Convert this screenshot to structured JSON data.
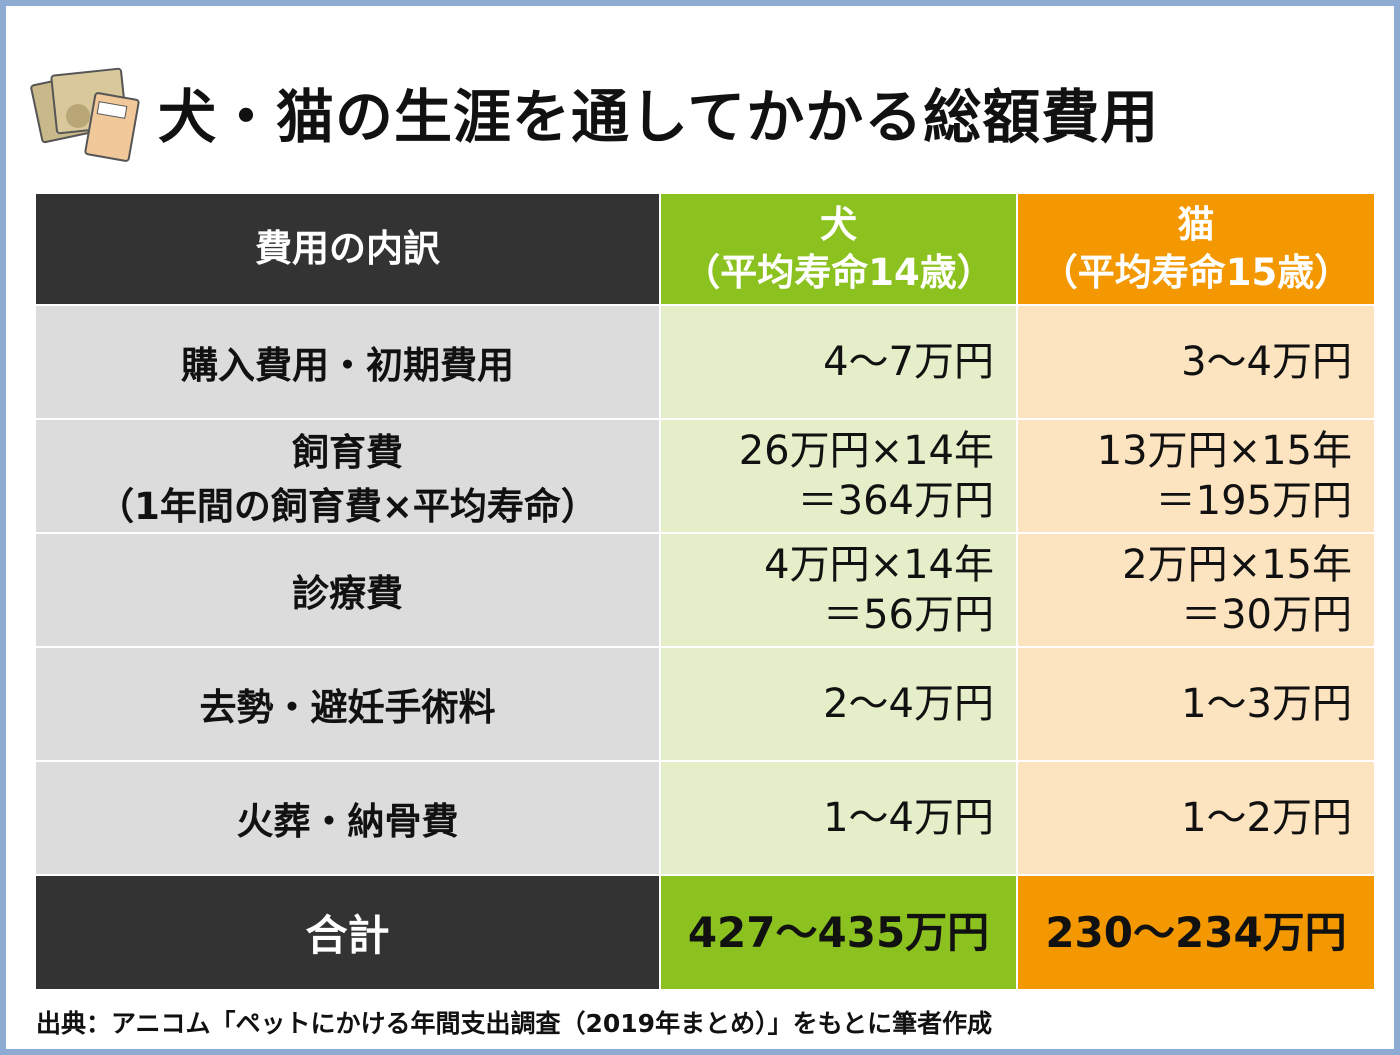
{
  "header": {
    "title": "犬・猫の生涯を通してかかる総額費用"
  },
  "table": {
    "columns": [
      [
        "費用の内訳"
      ],
      [
        "犬",
        "（平均寿命14歳）"
      ],
      [
        "猫",
        "（平均寿命15歳）"
      ]
    ],
    "rows": [
      [
        [
          "購入費用・初期費用"
        ],
        [
          "4〜7万円"
        ],
        [
          "3〜4万円"
        ]
      ],
      [
        [
          "飼育費",
          "（1年間の飼育費×平均寿命）"
        ],
        [
          "26万円×14年",
          "＝364万円"
        ],
        [
          "13万円×15年",
          "＝195万円"
        ]
      ],
      [
        [
          "診療費"
        ],
        [
          "4万円×14年",
          "＝56万円"
        ],
        [
          "2万円×15年",
          "＝30万円"
        ]
      ],
      [
        [
          "去勢・避妊手術料"
        ],
        [
          "2〜4万円"
        ],
        [
          "1〜3万円"
        ]
      ],
      [
        [
          "火葬・納骨費"
        ],
        [
          "1〜4万円"
        ],
        [
          "1〜2万円"
        ]
      ]
    ],
    "total": [
      [
        "合計"
      ],
      [
        "427〜435万円"
      ],
      [
        "230〜234万円"
      ]
    ]
  },
  "footer": {
    "source": "出典：アニコム「ペットにかける年間支出調査（2019年まとめ）」をもとに筆者作成"
  }
}
